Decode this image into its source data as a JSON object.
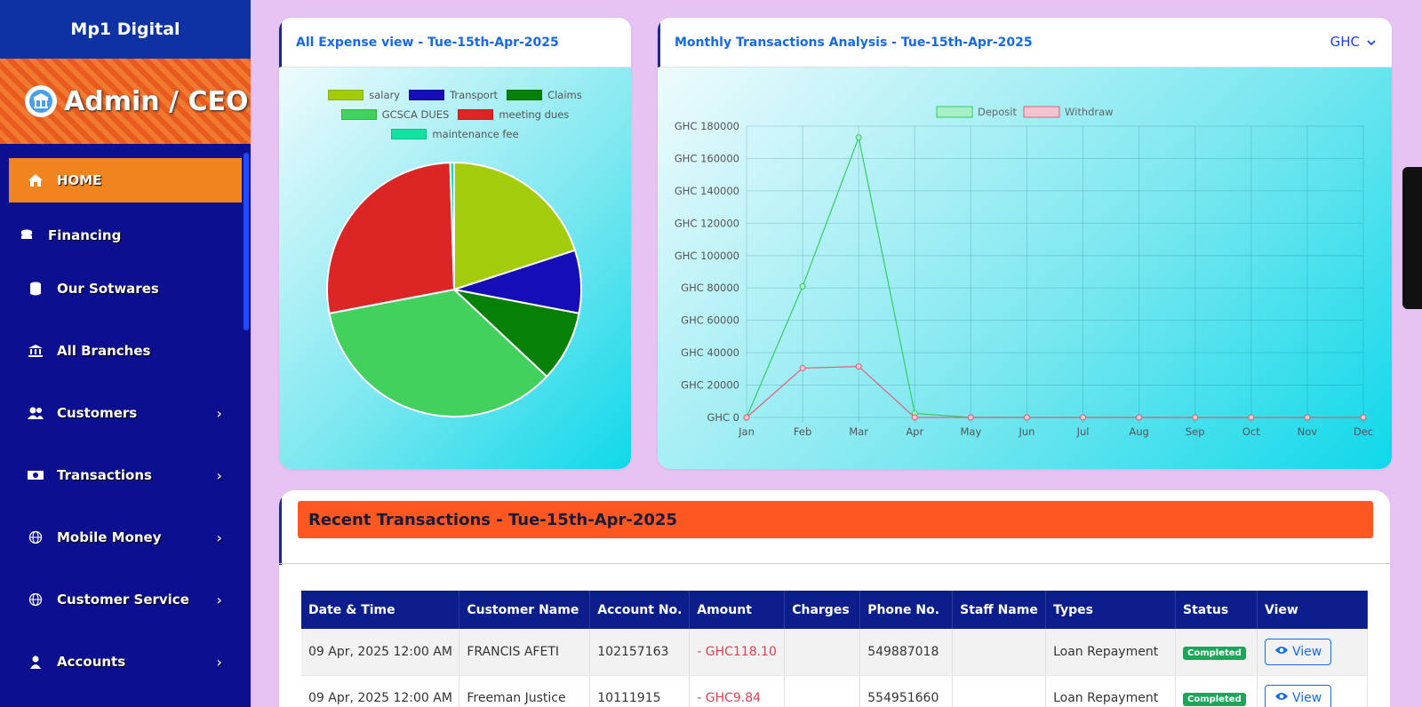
{
  "brand": "Mp1 Digital",
  "role": "Admin / CEO",
  "nav": [
    {
      "label": "HOME",
      "icon": "home-icon",
      "active": true
    },
    {
      "label": "Financing",
      "icon": "coins-icon"
    },
    {
      "label": "Our Sotwares",
      "icon": "database-icon"
    },
    {
      "label": "All Branches",
      "icon": "bank-icon"
    },
    {
      "label": "Customers",
      "icon": "users-icon",
      "chevron": "›"
    },
    {
      "label": "Transactions",
      "icon": "money-icon",
      "chevron": "›"
    },
    {
      "label": "Mobile Money",
      "icon": "globe-icon",
      "chevron": "›"
    },
    {
      "label": "Customer Service",
      "icon": "globe-icon",
      "chevron": "›"
    },
    {
      "label": "Accounts",
      "icon": "user-icon",
      "chevron": "›"
    }
  ],
  "expense": {
    "title": "All Expense view - Tue-15th-Apr-2025",
    "chart_data": {
      "type": "pie",
      "categories": [
        "salary",
        "Transport",
        "Claims",
        "GCSCA DUES",
        "meeting dues",
        "maintenance fee"
      ],
      "values": [
        20,
        8,
        9,
        35,
        27.5,
        0.5
      ],
      "colors": [
        "#a3cd0c",
        "#150eb8",
        "#078007",
        "#43d15d",
        "#dc2626",
        "#16e0a0"
      ]
    }
  },
  "monthly": {
    "title": "Monthly Transactions Analysis - Tue-15th-Apr-2025",
    "currency": "GHC",
    "chart_data": {
      "type": "line",
      "x": [
        "Jan",
        "Feb",
        "Mar",
        "Apr",
        "May",
        "Jun",
        "Jul",
        "Aug",
        "Sep",
        "Oct",
        "Nov",
        "Dec"
      ],
      "ylim": [
        0,
        180000
      ],
      "yticks": [
        "GHC 0",
        "GHC 20000",
        "GHC 40000",
        "GHC 60000",
        "GHC 80000",
        "GHC 100000",
        "GHC 120000",
        "GHC 140000",
        "GHC 160000",
        "GHC 180000"
      ],
      "series": [
        {
          "name": "Deposit",
          "color": "#33cc66",
          "fill": "#a6efc7",
          "values": [
            0,
            81000,
            173000,
            2500,
            0,
            0,
            0,
            0,
            0,
            0,
            0,
            0
          ]
        },
        {
          "name": "Withdraw",
          "color": "#e0607a",
          "fill": "#f2c4cf",
          "values": [
            0,
            30500,
            31500,
            0,
            0,
            0,
            0,
            0,
            0,
            0,
            0,
            0
          ]
        }
      ]
    }
  },
  "recent": {
    "title": "Recent Transactions - Tue-15th-Apr-2025",
    "columns": [
      "Date & Time",
      "Customer Name",
      "Account No.",
      "Amount",
      "Charges",
      "Phone No.",
      "Staff Name",
      "Types",
      "Status",
      "View"
    ],
    "rows": [
      {
        "date": "09 Apr, 2025 12:00 AM",
        "name": "FRANCIS AFETI",
        "account": "102157163",
        "amount": "- GHC118.10",
        "charges": "",
        "phone": "549887018",
        "staff": "",
        "type": "Loan Repayment",
        "status": "Completed",
        "view": "View"
      },
      {
        "date": "09 Apr, 2025 12:00 AM",
        "name": "Freeman Justice",
        "account": "10111915",
        "amount": "- GHC9.84",
        "charges": "",
        "phone": "554951660",
        "staff": "",
        "type": "Loan Repayment",
        "status": "Completed",
        "view": "View"
      }
    ]
  }
}
